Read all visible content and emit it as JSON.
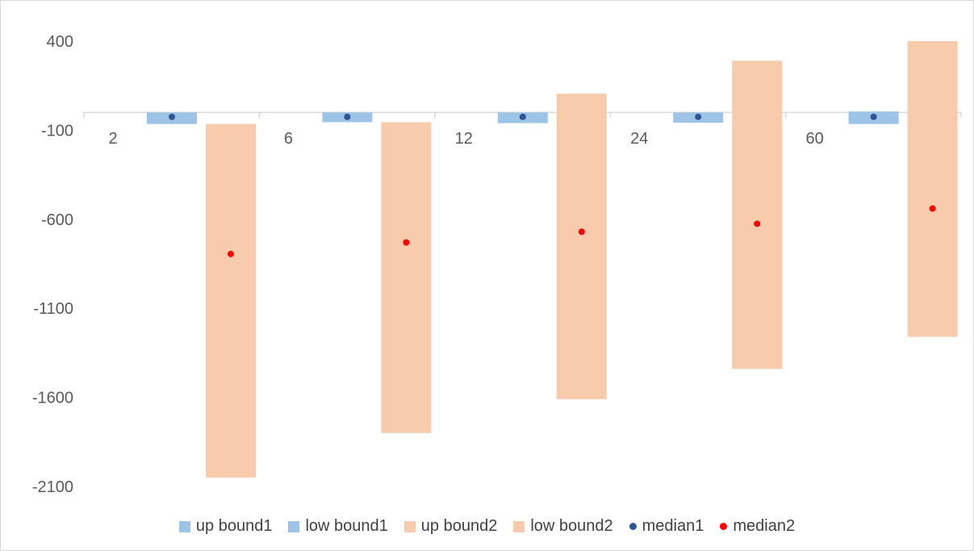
{
  "chart_data": {
    "type": "bar",
    "title": "",
    "xlabel": "",
    "ylabel": "",
    "ylim": [
      -2100,
      400
    ],
    "yticks": [
      "400",
      "-100",
      "-600",
      "-1100",
      "-1600",
      "-2100"
    ],
    "ytick_values": [
      400,
      -100,
      -600,
      -1100,
      -1600,
      -2100
    ],
    "categories": [
      "2",
      "6",
      "12",
      "24",
      "60"
    ],
    "series": [
      {
        "name": "up bound1",
        "values": [
          0,
          0,
          0,
          0,
          5
        ],
        "color": "#9dc3e6",
        "kind": "floating-bar-top",
        "group": 1
      },
      {
        "name": "low bound1",
        "values": [
          -65,
          -55,
          -60,
          -58,
          -65
        ],
        "color": "#9dc3e6",
        "kind": "floating-bar-bottom",
        "group": 1
      },
      {
        "name": "up bound2",
        "values": [
          -65,
          -55,
          105,
          290,
          400
        ],
        "color": "#f8cbad",
        "kind": "floating-bar-top",
        "group": 2
      },
      {
        "name": "low bound2",
        "values": [
          -2050,
          -1800,
          -1610,
          -1440,
          -1260
        ],
        "color": "#f8cbad",
        "kind": "floating-bar-bottom",
        "group": 2
      },
      {
        "name": "median1",
        "values": [
          -25,
          -25,
          -25,
          -25,
          -25
        ],
        "color": "#2f5597",
        "kind": "marker",
        "group": 1
      },
      {
        "name": "median2",
        "values": [
          -795,
          -730,
          -670,
          -625,
          -540
        ],
        "color": "#ff0000",
        "kind": "marker",
        "group": 2
      }
    ],
    "legend_position": "bottom",
    "grid": false
  }
}
